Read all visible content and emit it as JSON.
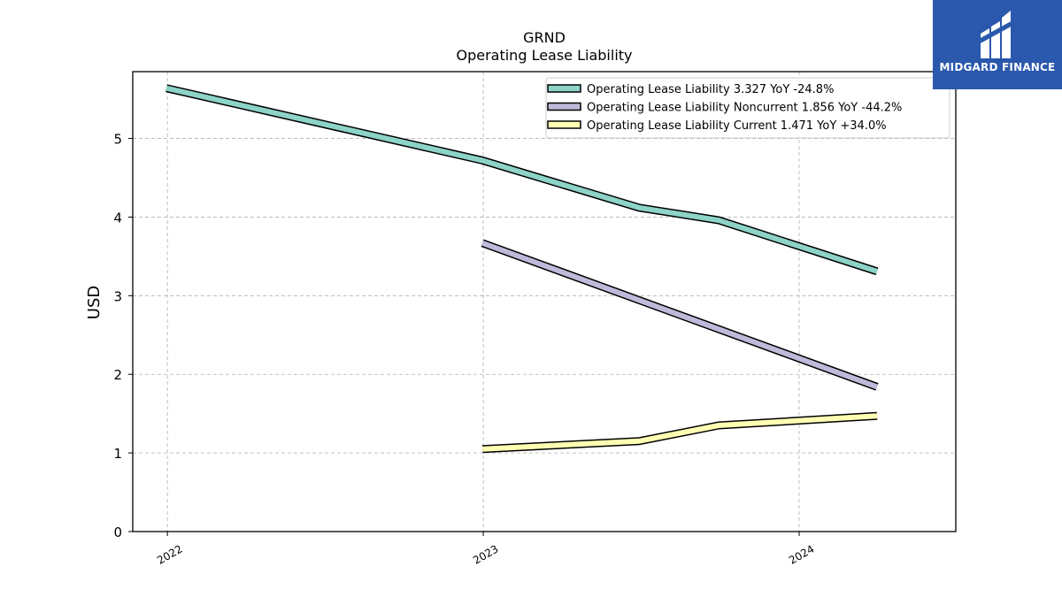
{
  "chart_data": {
    "type": "line",
    "title": "GRND",
    "subtitle": "Operating Lease Liability",
    "ylabel": "USD",
    "xlabel": "",
    "ylim": [
      0,
      5.85
    ],
    "yticks": [
      0,
      1,
      2,
      3,
      4,
      5
    ],
    "xlim": [
      "2021-11-22",
      "2024-06-30"
    ],
    "xticks": [
      {
        "date": "2022-01-01",
        "label": "2022"
      },
      {
        "date": "2023-01-01",
        "label": "2023"
      },
      {
        "date": "2024-01-01",
        "label": "2024"
      }
    ],
    "grid": true,
    "legend_position": "top-right",
    "series": [
      {
        "name": "Operating Lease Liability  3.327 YoY -24.8%",
        "color": "#8dd3c7",
        "points": [
          {
            "x": "2021-12-31",
            "y": 5.64
          },
          {
            "x": "2022-12-31",
            "y": 4.72
          },
          {
            "x": "2023-06-30",
            "y": 4.12
          },
          {
            "x": "2023-09-30",
            "y": 3.96
          },
          {
            "x": "2024-03-31",
            "y": 3.31
          }
        ]
      },
      {
        "name": "Operating Lease Liability Noncurrent  1.856 YoY -44.2%",
        "color": "#bebada",
        "points": [
          {
            "x": "2022-12-31",
            "y": 3.67
          },
          {
            "x": "2024-03-31",
            "y": 1.84
          }
        ]
      },
      {
        "name": "Operating Lease Liability Current  1.471 YoY +34.0%",
        "color": "#ffffb3",
        "points": [
          {
            "x": "2022-12-31",
            "y": 1.05
          },
          {
            "x": "2023-06-30",
            "y": 1.15
          },
          {
            "x": "2023-09-30",
            "y": 1.35
          },
          {
            "x": "2024-03-31",
            "y": 1.47
          }
        ]
      }
    ]
  },
  "logo": {
    "text": "MIDGARD FINANCE",
    "background": "#2a58ad"
  }
}
